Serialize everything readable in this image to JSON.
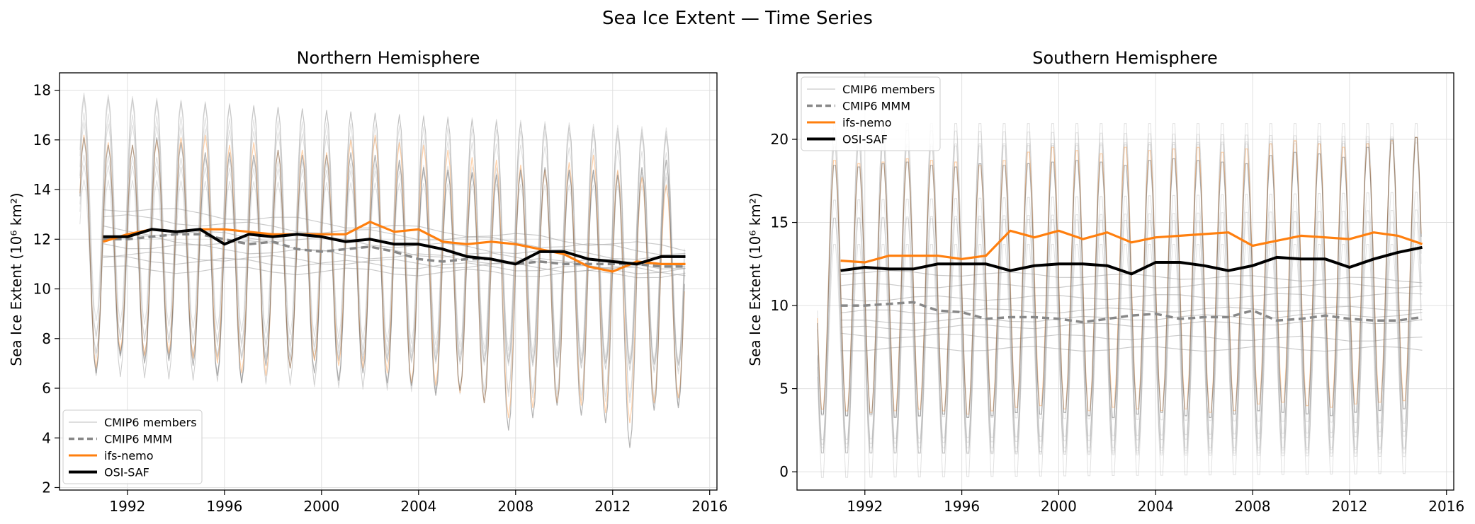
{
  "figure": {
    "suptitle": "Sea Ice Extent — Time Series"
  },
  "colors": {
    "cmip_members": "#a9a9a9",
    "cmip_mmm": "#888888",
    "ifs_nemo": "#ff7f0e",
    "osi_saf": "#000000",
    "grid": "#e0e0e0"
  },
  "chart_data": [
    {
      "type": "line",
      "title": "Northern Hemisphere",
      "xlabel": "",
      "ylabel": "Sea Ice Extent (10⁶ km²)",
      "xlim": [
        1989.2,
        2016.3
      ],
      "ylim": [
        1.9,
        18.7
      ],
      "xticks": [
        1992,
        1996,
        2000,
        2004,
        2008,
        2012,
        2016
      ],
      "yticks": [
        2,
        4,
        6,
        8,
        10,
        12,
        14,
        16,
        18
      ],
      "grid": true,
      "legend": {
        "position": "lower-left",
        "entries": [
          "CMIP6 members",
          "CMIP6 MMM",
          "ifs-nemo",
          "OSI-SAF"
        ]
      },
      "monthly": {
        "period": "1990–2014",
        "ifs_nemo": {
          "max": [
            16.2,
            15.9,
            15.8,
            16.0,
            16.1,
            16.2,
            15.8,
            15.9,
            15.6,
            15.6,
            15.5,
            16.0,
            16.2,
            15.9,
            15.8,
            15.6,
            15.3,
            15.2,
            15.0,
            14.8,
            15.1,
            15.4,
            14.8,
            14.5,
            14.2
          ],
          "min": [
            6.8,
            7.5,
            7.3,
            7.4,
            7.2,
            7.0,
            6.6,
            6.5,
            6.8,
            7.1,
            6.9,
            6.8,
            6.6,
            6.2,
            6.1,
            5.8,
            5.4,
            4.8,
            5.2,
            5.4,
            5.3,
            5.0,
            4.6,
            5.4,
            5.6
          ]
        },
        "osi_saf": {
          "max": [
            16.1,
            15.8,
            15.8,
            16.1,
            15.9,
            15.5,
            15.5,
            15.4,
            15.6,
            15.4,
            15.4,
            15.5,
            15.4,
            15.2,
            14.9,
            14.8,
            14.7,
            14.6,
            14.8,
            14.9,
            14.8,
            14.8,
            14.6,
            14.9,
            15.2
          ],
          "min": [
            6.6,
            7.3,
            7.0,
            7.1,
            6.9,
            6.5,
            6.2,
            6.9,
            6.8,
            6.6,
            6.3,
            6.6,
            6.2,
            6.1,
            5.7,
            5.9,
            5.4,
            4.3,
            4.8,
            5.3,
            4.9,
            4.6,
            3.6,
            5.1,
            5.2
          ]
        },
        "cmip6_members": [
          {
            "mean": 12.9,
            "amp": 4.9,
            "trend": -0.06
          },
          {
            "mean": 11.2,
            "amp": 3.8,
            "trend": -0.02
          },
          {
            "mean": 12.4,
            "amp": 4.3,
            "trend": -0.05
          },
          {
            "mean": 11.8,
            "amp": 5.3,
            "trend": -0.04
          },
          {
            "mean": 13.3,
            "amp": 4.6,
            "trend": -0.07
          },
          {
            "mean": 11.4,
            "amp": 4.0,
            "trend": -0.03
          },
          {
            "mean": 12.1,
            "amp": 5.6,
            "trend": -0.05
          },
          {
            "mean": 10.8,
            "amp": 3.6,
            "trend": -0.01
          }
        ]
      },
      "annual": {
        "x": [
          1991,
          1992,
          1993,
          1994,
          1995,
          1996,
          1997,
          1998,
          1999,
          2000,
          2001,
          2002,
          2003,
          2004,
          2005,
          2006,
          2007,
          2008,
          2009,
          2010,
          2011,
          2012,
          2013,
          2014,
          2015
        ],
        "series": [
          {
            "name": "CMIP6 MMM",
            "values": [
              12.0,
              12.0,
              12.1,
              12.2,
              12.2,
              12.0,
              11.8,
              11.9,
              11.6,
              11.5,
              11.6,
              11.7,
              11.5,
              11.2,
              11.1,
              11.2,
              11.2,
              11.0,
              11.1,
              11.0,
              11.0,
              11.0,
              11.0,
              10.9,
              10.9
            ]
          },
          {
            "name": "ifs-nemo",
            "values": [
              11.9,
              12.2,
              12.4,
              12.3,
              12.4,
              12.4,
              12.3,
              12.2,
              12.2,
              12.2,
              12.2,
              12.7,
              12.3,
              12.4,
              11.9,
              11.8,
              11.9,
              11.8,
              11.6,
              11.4,
              10.9,
              10.7,
              11.1,
              11.0,
              11.0
            ]
          },
          {
            "name": "OSI-SAF",
            "values": [
              12.1,
              12.1,
              12.4,
              12.3,
              12.4,
              11.8,
              12.2,
              12.1,
              12.2,
              12.1,
              11.9,
              12.0,
              11.8,
              11.8,
              11.6,
              11.3,
              11.2,
              11.0,
              11.5,
              11.5,
              11.2,
              11.1,
              11.0,
              11.3,
              11.3
            ]
          }
        ]
      }
    },
    {
      "type": "line",
      "title": "Southern Hemisphere",
      "xlabel": "",
      "ylabel": "Sea Ice Extent (10⁶ km²)",
      "xlim": [
        1989.2,
        2016.3
      ],
      "ylim": [
        -1.1,
        24.0
      ],
      "xticks": [
        1992,
        1996,
        2000,
        2004,
        2008,
        2012,
        2016
      ],
      "yticks": [
        0,
        5,
        10,
        15,
        20
      ],
      "grid": true,
      "legend": {
        "position": "upper-left",
        "entries": [
          "CMIP6 members",
          "CMIP6 MMM",
          "ifs-nemo",
          "OSI-SAF"
        ]
      },
      "monthly": {
        "period": "1990–2014",
        "ifs_nemo": {
          "max": [
            19.0,
            18.8,
            18.9,
            19.1,
            19.0,
            18.9,
            18.7,
            19.0,
            19.5,
            19.8,
            19.6,
            19.4,
            19.8,
            19.6,
            19.7,
            19.8,
            19.5,
            19.7,
            20.0,
            20.2,
            20.0,
            19.8,
            20.0,
            20.2,
            20.4
          ],
          "min": [
            3.5,
            3.4,
            3.3,
            3.4,
            3.5,
            3.4,
            3.2,
            3.4,
            3.6,
            3.7,
            3.5,
            3.4,
            3.6,
            3.5,
            3.4,
            3.5,
            3.3,
            3.4,
            3.8,
            3.9,
            3.7,
            3.6,
            3.8,
            3.9,
            4.0
          ]
        },
        "osi_saf": {
          "max": [
            18.7,
            18.6,
            18.8,
            18.9,
            18.7,
            18.6,
            18.8,
            18.7,
            18.8,
            18.9,
            19.0,
            18.9,
            18.7,
            19.0,
            19.1,
            19.0,
            18.9,
            18.8,
            19.3,
            19.5,
            19.4,
            19.2,
            19.8,
            20.3,
            20.4
          ],
          "min": [
            3.2,
            3.1,
            3.2,
            3.0,
            3.1,
            3.2,
            3.0,
            3.1,
            3.3,
            3.2,
            3.3,
            3.1,
            3.0,
            3.2,
            3.3,
            3.1,
            3.0,
            3.2,
            3.4,
            3.3,
            3.2,
            3.1,
            3.3,
            3.4,
            3.5
          ]
        },
        "cmip6_members": [
          {
            "mean": 11.2,
            "amp": 10.1,
            "trend": 0.0
          },
          {
            "mean": 9.0,
            "amp": 7.6,
            "trend": 0.02
          },
          {
            "mean": 8.2,
            "amp": 7.3,
            "trend": -0.01
          },
          {
            "mean": 10.4,
            "amp": 9.6,
            "trend": 0.01
          },
          {
            "mean": 7.4,
            "amp": 6.5,
            "trend": 0.0
          },
          {
            "mean": 12.0,
            "amp": 8.9,
            "trend": -0.02
          },
          {
            "mean": 9.6,
            "amp": 10.3,
            "trend": 0.01
          },
          {
            "mean": 8.6,
            "amp": 6.9,
            "trend": 0.02
          }
        ]
      },
      "annual": {
        "x": [
          1991,
          1992,
          1993,
          1994,
          1995,
          1996,
          1997,
          1998,
          1999,
          2000,
          2001,
          2002,
          2003,
          2004,
          2005,
          2006,
          2007,
          2008,
          2009,
          2010,
          2011,
          2012,
          2013,
          2014,
          2015
        ],
        "series": [
          {
            "name": "CMIP6 MMM",
            "values": [
              10.0,
              10.0,
              10.1,
              10.2,
              9.7,
              9.6,
              9.2,
              9.3,
              9.3,
              9.2,
              9.0,
              9.2,
              9.4,
              9.5,
              9.2,
              9.3,
              9.3,
              9.7,
              9.1,
              9.2,
              9.4,
              9.2,
              9.1,
              9.1,
              9.3
            ]
          },
          {
            "name": "ifs-nemo",
            "values": [
              12.7,
              12.6,
              13.0,
              13.0,
              13.0,
              12.8,
              13.0,
              14.5,
              14.1,
              14.5,
              14.0,
              14.4,
              13.8,
              14.1,
              14.2,
              14.3,
              14.4,
              13.6,
              13.9,
              14.2,
              14.1,
              14.0,
              14.4,
              14.2,
              13.7
            ]
          },
          {
            "name": "OSI-SAF",
            "values": [
              12.1,
              12.3,
              12.2,
              12.2,
              12.5,
              12.5,
              12.5,
              12.1,
              12.4,
              12.5,
              12.5,
              12.4,
              11.9,
              12.6,
              12.6,
              12.4,
              12.1,
              12.4,
              12.9,
              12.8,
              12.8,
              12.3,
              12.8,
              13.2,
              13.5
            ]
          }
        ]
      }
    }
  ]
}
